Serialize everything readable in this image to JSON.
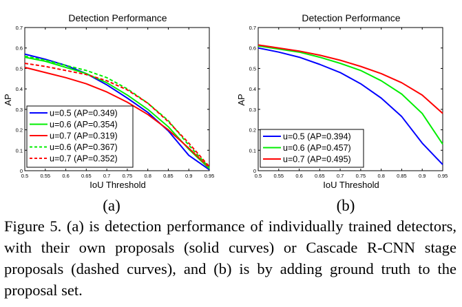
{
  "chart_data": [
    {
      "type": "line",
      "title": "Detection Performance",
      "xlabel": "IoU Threshold",
      "ylabel": "AP",
      "xlim": [
        0.5,
        0.95
      ],
      "ylim": [
        0,
        0.7
      ],
      "xticks": [
        "0.5",
        "0.55",
        "0.6",
        "0.65",
        "0.7",
        "0.75",
        "0.8",
        "0.85",
        "0.9",
        "0.95"
      ],
      "yticks": [
        "0",
        "0.1",
        "0.2",
        "0.3",
        "0.4",
        "0.5",
        "0.6",
        "0.7"
      ],
      "x": [
        0.5,
        0.55,
        0.6,
        0.65,
        0.7,
        0.75,
        0.8,
        0.85,
        0.9,
        0.95
      ],
      "legend_position": "bottom-left",
      "series": [
        {
          "name": "u=0.5 (AP=0.349)",
          "color": "#0000ff",
          "dash": "solid",
          "values": [
            0.57,
            0.545,
            0.515,
            0.475,
            0.42,
            0.355,
            0.285,
            0.195,
            0.075,
            0.005
          ]
        },
        {
          "name": "u=0.6 (AP=0.354)",
          "color": "#00ee00",
          "dash": "solid",
          "values": [
            0.555,
            0.535,
            0.505,
            0.475,
            0.43,
            0.37,
            0.3,
            0.215,
            0.105,
            0.01
          ]
        },
        {
          "name": "u=0.7 (AP=0.319)",
          "color": "#ff0000",
          "dash": "solid",
          "values": [
            0.505,
            0.48,
            0.455,
            0.425,
            0.385,
            0.335,
            0.275,
            0.2,
            0.11,
            0.015
          ]
        },
        {
          "name": "u=0.6 (AP=0.367)",
          "color": "#00ee00",
          "dash": "dashed",
          "values": [
            0.56,
            0.54,
            0.515,
            0.49,
            0.455,
            0.4,
            0.33,
            0.245,
            0.125,
            0.015
          ]
        },
        {
          "name": "u=0.7 (AP=0.352)",
          "color": "#ff0000",
          "dash": "dashed",
          "values": [
            0.525,
            0.51,
            0.49,
            0.47,
            0.44,
            0.395,
            0.33,
            0.24,
            0.135,
            0.02
          ]
        }
      ]
    },
    {
      "type": "line",
      "title": "Detection Performance",
      "xlabel": "IoU Threshold",
      "ylabel": "AP",
      "xlim": [
        0.5,
        0.95
      ],
      "ylim": [
        0,
        0.7
      ],
      "xticks": [
        "0.5",
        "0.55",
        "0.6",
        "0.65",
        "0.7",
        "0.75",
        "0.8",
        "0.85",
        "0.9",
        "0.95"
      ],
      "yticks": [
        "0",
        "0.1",
        "0.2",
        "0.3",
        "0.4",
        "0.5",
        "0.6",
        "0.7"
      ],
      "x": [
        0.5,
        0.55,
        0.6,
        0.65,
        0.7,
        0.75,
        0.8,
        0.85,
        0.9,
        0.95
      ],
      "legend_position": "bottom-left",
      "series": [
        {
          "name": "u=0.5 (AP=0.394)",
          "color": "#0000ff",
          "dash": "solid",
          "values": [
            0.6,
            0.58,
            0.555,
            0.52,
            0.48,
            0.425,
            0.355,
            0.265,
            0.135,
            0.03
          ]
        },
        {
          "name": "u=0.6 (AP=0.457)",
          "color": "#00ee00",
          "dash": "solid",
          "values": [
            0.61,
            0.595,
            0.58,
            0.555,
            0.525,
            0.49,
            0.44,
            0.375,
            0.28,
            0.13
          ]
        },
        {
          "name": "u=0.7 (AP=0.495)",
          "color": "#ff0000",
          "dash": "solid",
          "values": [
            0.615,
            0.6,
            0.585,
            0.565,
            0.54,
            0.51,
            0.475,
            0.43,
            0.37,
            0.28
          ]
        }
      ]
    }
  ],
  "subfigure_labels": [
    "(a)",
    "(b)"
  ],
  "caption": "Figure 5. (a) is detection performance of individually trained detectors, with their own proposals (solid curves) or Cascade R-CNN stage proposals (dashed curves), and (b) is by adding ground truth to the proposal set."
}
